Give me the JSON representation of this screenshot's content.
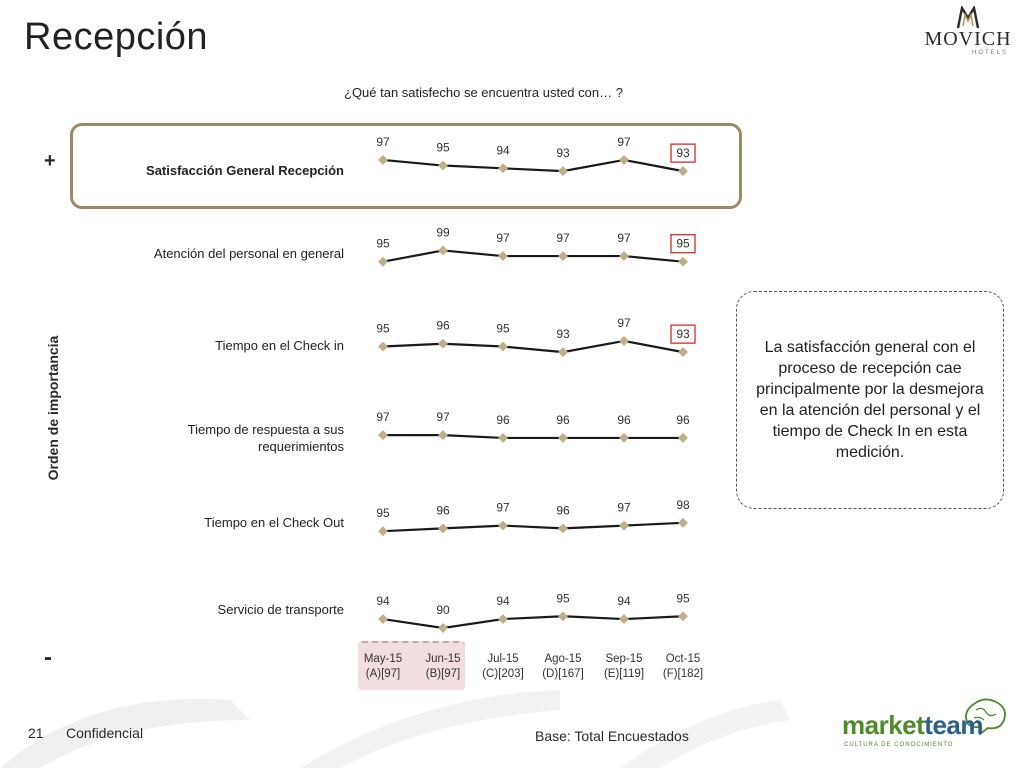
{
  "page": {
    "title": "Recepción",
    "question": "¿Qué tan satisfecho se encuentra usted con… ?",
    "axis_title": "Orden de importancia",
    "axis_top": "+",
    "axis_bottom": "-",
    "callout": "La satisfacción general con el proceso de recepción cae principalmente por la desmejora en la atención del personal y el tiempo de Check In en esta medición.",
    "footer": {
      "page_number": "21",
      "confidential": "Confidencial",
      "base": "Base: Total Encuestados"
    },
    "logo": {
      "brand": "MOVICH",
      "sub": "HOTELS"
    },
    "partner_logo": {
      "part_a": "market",
      "part_b": "team",
      "sub": "CULTURA DE CONOCIMIENTO"
    }
  },
  "periods": [
    {
      "label": "May-15",
      "base": "(A)[97]",
      "highlight": true
    },
    {
      "label": "Jun-15",
      "base": "(B)[97]",
      "highlight": true
    },
    {
      "label": "Jul-15",
      "base": "(C)[203]",
      "highlight": false
    },
    {
      "label": "Ago-15",
      "base": "(D)[167]",
      "highlight": false
    },
    {
      "label": "Sep-15",
      "base": "(E)[119]",
      "highlight": false
    },
    {
      "label": "Oct-15",
      "base": "(F)[182]",
      "highlight": false
    }
  ],
  "colors": {
    "line": "#1a1a1a",
    "marker": "#bfae8a",
    "highlight_border": "#9a8a66",
    "flag_border": "#d23b3b"
  },
  "chart_data": {
    "type": "line",
    "categories": [
      "May-15",
      "Jun-15",
      "Jul-15",
      "Ago-15",
      "Sep-15",
      "Oct-15"
    ],
    "series": [
      {
        "name": "Satisfacción General Recepción",
        "values": [
          97,
          95,
          94,
          93,
          97,
          93
        ],
        "flag_last": true,
        "bold": true
      },
      {
        "name": "Atención del personal en general",
        "values": [
          95,
          99,
          97,
          97,
          97,
          95
        ],
        "flag_last": true,
        "bold": false
      },
      {
        "name": "Tiempo en el Check in",
        "values": [
          95,
          96,
          95,
          93,
          97,
          93
        ],
        "flag_last": true,
        "bold": false
      },
      {
        "name": "Tiempo de respuesta a sus requerimientos",
        "values": [
          97,
          97,
          96,
          96,
          96,
          96
        ],
        "flag_last": false,
        "bold": false
      },
      {
        "name": "Tiempo en el Check Out",
        "values": [
          95,
          96,
          97,
          96,
          97,
          98
        ],
        "flag_last": false,
        "bold": false
      },
      {
        "name": "Servicio de transporte",
        "values": [
          94,
          90,
          94,
          95,
          94,
          95
        ],
        "flag_last": false,
        "bold": false
      }
    ]
  }
}
